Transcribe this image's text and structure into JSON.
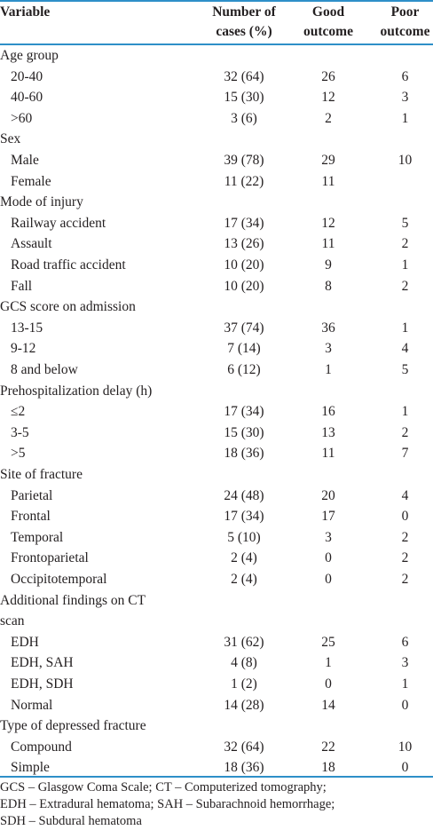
{
  "headers": {
    "variable": "Variable",
    "cases_line1": "Number of",
    "cases_line2": "cases (%)",
    "good_line1": "Good",
    "good_line2": "outcome",
    "poor_line1": "Poor",
    "poor_line2": "outcome"
  },
  "rows": [
    {
      "label": "Age group",
      "kind": "group"
    },
    {
      "label": "20-40",
      "kind": "item",
      "cases": "32 (64)",
      "good": "26",
      "poor": "6"
    },
    {
      "label": "40-60",
      "kind": "item",
      "cases": "15 (30)",
      "good": "12",
      "poor": "3"
    },
    {
      "label": ">60",
      "kind": "item",
      "cases": "3 (6)",
      "good": "2",
      "poor": "1"
    },
    {
      "label": "Sex",
      "kind": "group"
    },
    {
      "label": "Male",
      "kind": "item",
      "cases": "39 (78)",
      "good": "29",
      "poor": "10"
    },
    {
      "label": "Female",
      "kind": "item",
      "cases": "11 (22)",
      "good": "11",
      "poor": ""
    },
    {
      "label": "Mode of injury",
      "kind": "group"
    },
    {
      "label": "Railway accident",
      "kind": "item",
      "cases": "17 (34)",
      "good": "12",
      "poor": "5"
    },
    {
      "label": "Assault",
      "kind": "item",
      "cases": "13 (26)",
      "good": "11",
      "poor": "2"
    },
    {
      "label": "Road traffic accident",
      "kind": "item",
      "cases": "10 (20)",
      "good": "9",
      "poor": "1"
    },
    {
      "label": "Fall",
      "kind": "item",
      "cases": "10 (20)",
      "good": "8",
      "poor": "2"
    },
    {
      "label": "GCS score on admission",
      "kind": "group"
    },
    {
      "label": "13-15",
      "kind": "item",
      "cases": "37 (74)",
      "good": "36",
      "poor": "1"
    },
    {
      "label": "9-12",
      "kind": "item",
      "cases": "7 (14)",
      "good": "3",
      "poor": "4"
    },
    {
      "label": "8 and below",
      "kind": "item",
      "cases": "6 (12)",
      "good": "1",
      "poor": "5"
    },
    {
      "label": "Prehospitalization delay (h)",
      "kind": "group"
    },
    {
      "label": "≤2",
      "kind": "item",
      "cases": "17 (34)",
      "good": "16",
      "poor": "1"
    },
    {
      "label": "3-5",
      "kind": "item",
      "cases": "15 (30)",
      "good": "13",
      "poor": "2"
    },
    {
      "label": ">5",
      "kind": "item",
      "cases": "18 (36)",
      "good": "11",
      "poor": "7"
    },
    {
      "label": "Site of fracture",
      "kind": "group"
    },
    {
      "label": "Parietal",
      "kind": "item",
      "cases": "24 (48)",
      "good": "20",
      "poor": "4"
    },
    {
      "label": "Frontal",
      "kind": "item",
      "cases": "17 (34)",
      "good": "17",
      "poor": "0"
    },
    {
      "label": "Temporal",
      "kind": "item",
      "cases": "5 (10)",
      "good": "3",
      "poor": "2"
    },
    {
      "label": "Frontoparietal",
      "kind": "item",
      "cases": "2 (4)",
      "good": "0",
      "poor": "2"
    },
    {
      "label": "Occipitotemporal",
      "kind": "item",
      "cases": "2 (4)",
      "good": "0",
      "poor": "2"
    },
    {
      "label": "Additional findings on CT",
      "kind": "group"
    },
    {
      "label": "scan",
      "kind": "group"
    },
    {
      "label": "EDH",
      "kind": "item",
      "cases": "31 (62)",
      "good": "25",
      "poor": "6"
    },
    {
      "label": "EDH, SAH",
      "kind": "item",
      "cases": "4 (8)",
      "good": "1",
      "poor": "3"
    },
    {
      "label": "EDH, SDH",
      "kind": "item",
      "cases": "1 (2)",
      "good": "0",
      "poor": "1"
    },
    {
      "label": "Normal",
      "kind": "item",
      "cases": "14 (28)",
      "good": "14",
      "poor": "0"
    },
    {
      "label": "Type of depressed fracture",
      "kind": "group"
    },
    {
      "label": "Compound",
      "kind": "item",
      "cases": "32 (64)",
      "good": "22",
      "poor": "10"
    },
    {
      "label": "Simple",
      "kind": "item",
      "cases": "18 (36)",
      "good": "18",
      "poor": "0"
    }
  ],
  "footnote": [
    "GCS – Glasgow Coma Scale; CT – Computerized tomography;",
    "EDH – Extradural hematoma; SAH – Subarachnoid hemorrhage;",
    "SDH – Subdural hematoma"
  ],
  "colors": {
    "rule": "#2e8fc8",
    "text": "#231f20"
  }
}
